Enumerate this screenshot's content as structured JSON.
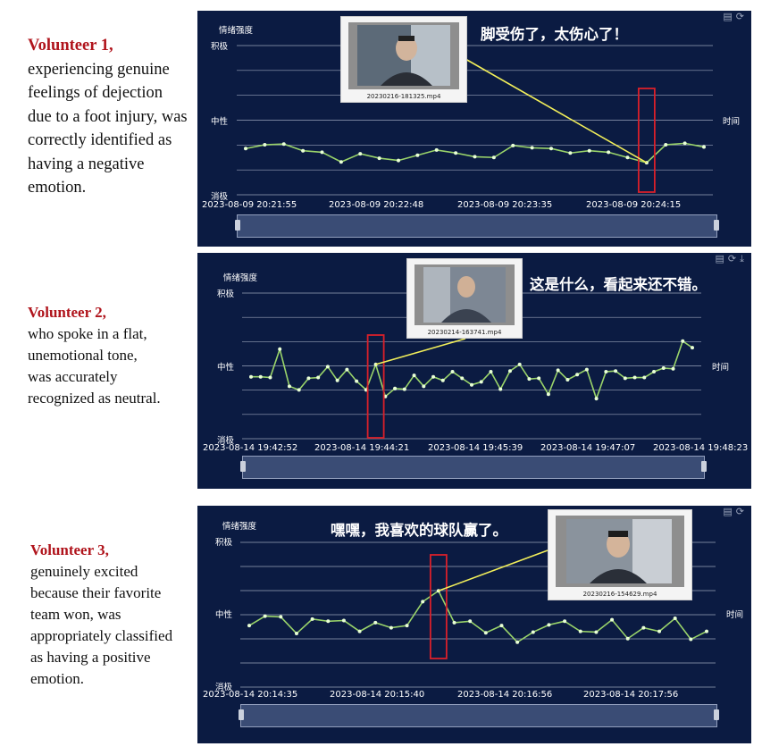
{
  "panels": [
    {
      "caption_title": "Volunteer 1,",
      "caption_body": "experiencing genuine feelings of dejection due to a foot injury, was correctly identified as having a negative emotion.",
      "chart_title": "情绪强度",
      "y_labels": {
        "positive": "积极",
        "neutral": "中性",
        "negative": "消极"
      },
      "x_axis_name": "时间",
      "speech": "脚受伤了，太伤心了！",
      "video_file": "20230216-181325.mp4",
      "time_labels": [
        "2023-08-09 20:21:55",
        "2023-08-09 20:22:48",
        "2023-08-09 20:23:35",
        "2023-08-09 20:24:15"
      ],
      "chart_data": {
        "type": "line",
        "ylabel": "情绪强度",
        "xlabel": "时间",
        "ylim": [
          -1,
          1
        ],
        "values": [
          -0.38,
          -0.33,
          -0.32,
          -0.41,
          -0.43,
          -0.56,
          -0.45,
          -0.51,
          -0.54,
          -0.47,
          -0.4,
          -0.44,
          -0.49,
          -0.5,
          -0.34,
          -0.37,
          -0.38,
          -0.44,
          -0.41,
          -0.43,
          -0.5,
          -0.57,
          -0.33,
          -0.31,
          -0.36
        ],
        "highlight_index": 21
      }
    },
    {
      "caption_title": "Volunteer 2,",
      "caption_body": "who spoke in a flat, unemotional tone, was accurately recognized as neutral.",
      "chart_title": "情绪强度",
      "y_labels": {
        "positive": "积极",
        "neutral": "中性",
        "negative": "消极"
      },
      "x_axis_name": "时间",
      "speech": "这是什么，看起来还不错。",
      "video_file": "20230214-163741.mp4",
      "time_labels": [
        "2023-08-14 19:42:52",
        "2023-08-14 19:44:21",
        "2023-08-14 19:45:39",
        "2023-08-14 19:47:07",
        "2023-08-14 19:48:23"
      ],
      "chart_data": {
        "type": "line",
        "ylabel": "情绪强度",
        "xlabel": "时间",
        "ylim": [
          -1,
          1
        ],
        "values": [
          -0.15,
          -0.15,
          -0.16,
          0.23,
          -0.28,
          -0.33,
          -0.17,
          -0.16,
          -0.01,
          -0.2,
          -0.05,
          -0.21,
          -0.33,
          0.02,
          -0.42,
          -0.31,
          -0.32,
          -0.13,
          -0.28,
          -0.15,
          -0.2,
          -0.08,
          -0.17,
          -0.26,
          -0.22,
          -0.08,
          -0.32,
          -0.07,
          0.02,
          -0.18,
          -0.17,
          -0.39,
          -0.06,
          -0.19,
          -0.12,
          -0.05,
          -0.45,
          -0.08,
          -0.07,
          -0.17,
          -0.16,
          -0.16,
          -0.08,
          -0.03,
          -0.04,
          0.34,
          0.25
        ],
        "highlight_index": 13
      }
    },
    {
      "caption_title": "Volunteer 3,",
      "caption_body": "genuinely excited because their favorite team won, was appropriately classified as having a positive emotion.",
      "chart_title": "情绪强度",
      "y_labels": {
        "positive": "积极",
        "neutral": "中性",
        "negative": "消极"
      },
      "x_axis_name": "时间",
      "speech": "嘿嘿，我喜欢的球队赢了。",
      "video_file": "20230216-154629.mp4",
      "time_labels": [
        "2023-08-14 20:14:35",
        "2023-08-14 20:15:40",
        "2023-08-14 20:16:56",
        "2023-08-14 20:17:56"
      ],
      "chart_data": {
        "type": "line",
        "ylabel": "情绪强度",
        "xlabel": "时间",
        "ylim": [
          -1,
          1
        ],
        "values": [
          -0.15,
          -0.02,
          -0.03,
          -0.26,
          -0.06,
          -0.09,
          -0.08,
          -0.23,
          -0.11,
          -0.18,
          -0.15,
          0.18,
          0.33,
          -0.11,
          -0.09,
          -0.25,
          -0.15,
          -0.38,
          -0.24,
          -0.14,
          -0.09,
          -0.23,
          -0.24,
          -0.07,
          -0.33,
          -0.18,
          -0.23,
          -0.05,
          -0.34,
          -0.23
        ],
        "highlight_index": 12
      }
    }
  ]
}
